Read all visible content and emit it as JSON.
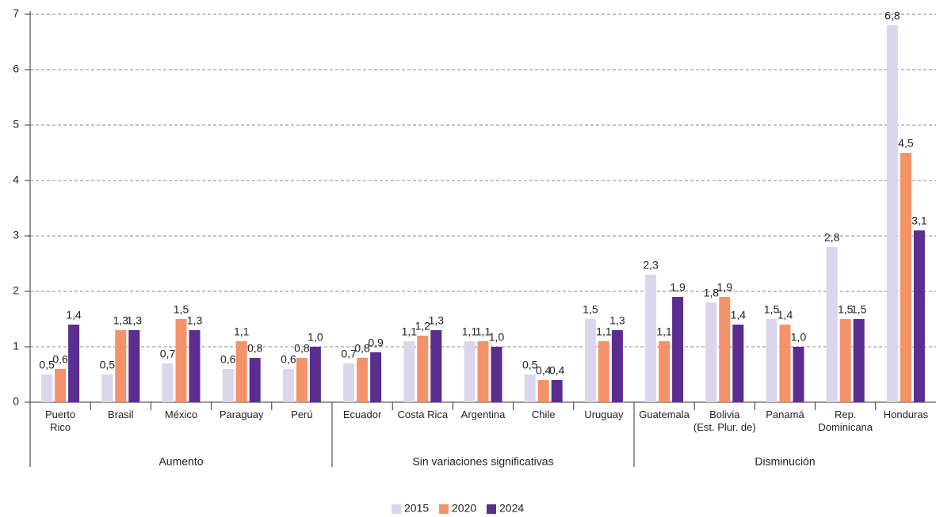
{
  "chart_data": {
    "type": "bar",
    "categories": [
      "Puerto\nRico",
      "Brasil",
      "México",
      "Paraguay",
      "Perú",
      "Ecuador",
      "Costa Rica",
      "Argentina",
      "Chile",
      "Uruguay",
      "Guatemala",
      "Bolivia\n(Est. Plur. de)",
      "Panamá",
      "Rep.\nDominicana",
      "Honduras"
    ],
    "groups": [
      {
        "label": "Aumento",
        "size": 5
      },
      {
        "label": "Sin variaciones significativas",
        "size": 5
      },
      {
        "label": "Disminución",
        "size": 5
      }
    ],
    "series": [
      {
        "name": "2015",
        "color": "#dcd6ec",
        "values": [
          0.5,
          0.5,
          0.7,
          0.6,
          0.6,
          0.7,
          1.1,
          1.1,
          0.5,
          1.5,
          2.3,
          1.8,
          1.5,
          2.8,
          6.8
        ],
        "value_labels": [
          "0,5",
          "0,5",
          "0,7",
          "0,6",
          "0,6",
          "0,7",
          "1,1",
          "1,1",
          "0,5",
          "1,5",
          "2,3",
          "1,8",
          "1,5",
          "2,8",
          "6,8"
        ]
      },
      {
        "name": "2020",
        "color": "#f4926a",
        "values": [
          0.6,
          1.3,
          1.5,
          1.1,
          0.8,
          0.8,
          1.2,
          1.1,
          0.4,
          1.1,
          1.1,
          1.9,
          1.4,
          1.5,
          4.5
        ],
        "value_labels": [
          "0,6",
          "1,3",
          "1,5",
          "1,1",
          "0,8",
          "0,8",
          "1,2",
          "1,1",
          "0,4",
          "1,1",
          "1,1",
          "1,9",
          "1,4",
          "1,5",
          "4,5"
        ]
      },
      {
        "name": "2024",
        "color": "#5b2d8e",
        "values": [
          1.4,
          1.3,
          1.3,
          0.8,
          1.0,
          0.9,
          1.3,
          1.0,
          0.4,
          1.3,
          1.9,
          1.4,
          1.0,
          1.5,
          3.1
        ],
        "value_labels": [
          "1,4",
          "1,3",
          "1,3",
          "0,8",
          "1,0",
          "0,9",
          "1,3",
          "1,0",
          "0,4",
          "1,3",
          "1,9",
          "1,4",
          "1,0",
          "1,5",
          "3,1"
        ]
      }
    ],
    "ylim": [
      0,
      7
    ],
    "yticks": [
      0,
      1,
      2,
      3,
      4,
      5,
      6,
      7
    ],
    "grid": true,
    "legend": "bottom"
  }
}
